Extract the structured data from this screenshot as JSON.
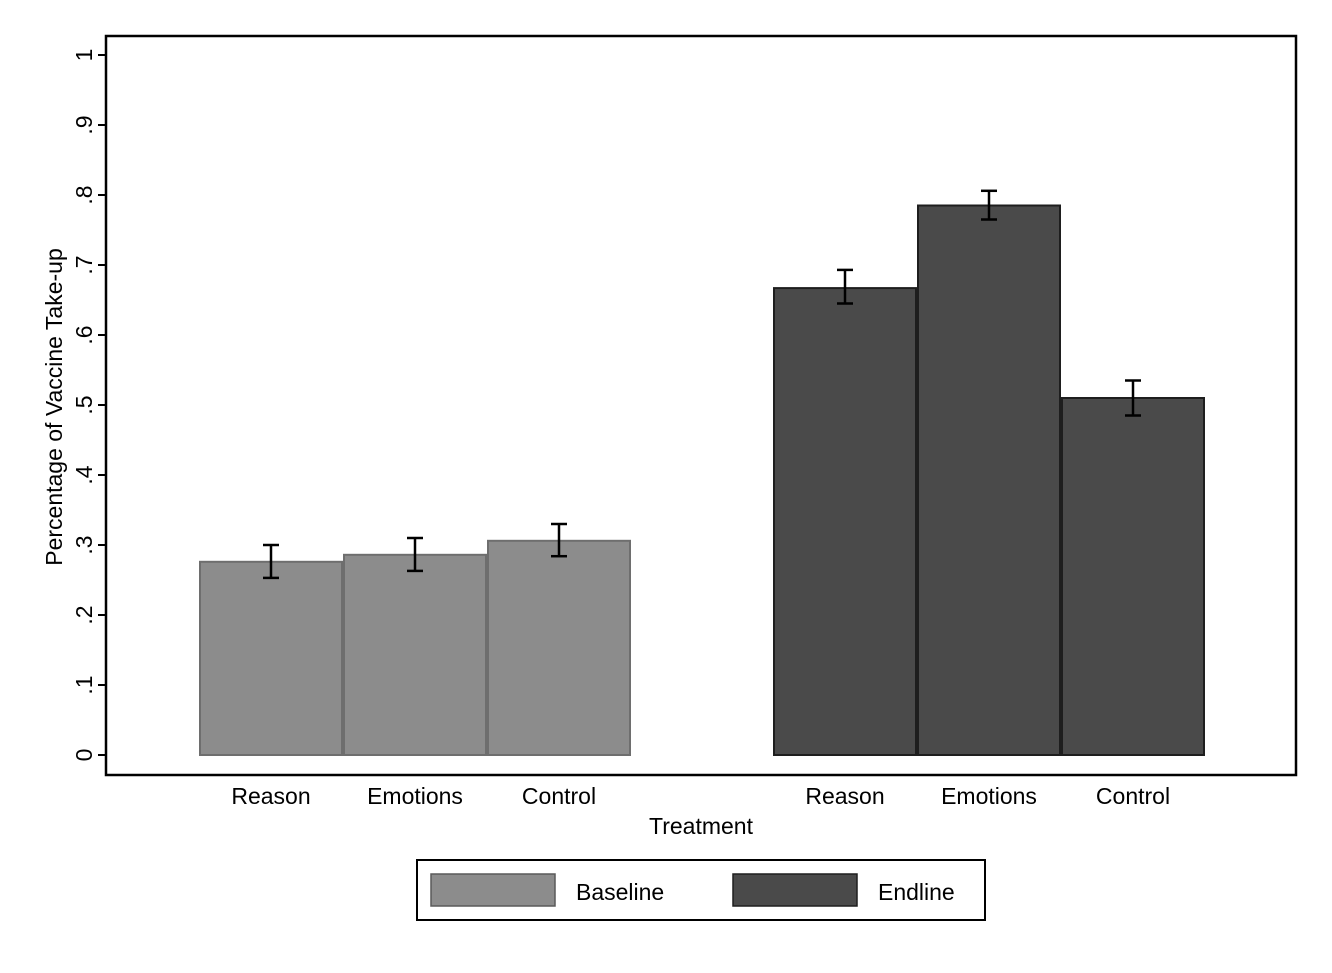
{
  "chart_data": {
    "type": "bar",
    "xlabel": "Treatment",
    "ylabel": "Percentage of Vaccine Take-up",
    "ylim": [
      0,
      1
    ],
    "yticks": [
      "0",
      ".1",
      ".2",
      ".3",
      ".4",
      ".5",
      ".6",
      ".7",
      ".8",
      ".9",
      "1"
    ],
    "grid": false,
    "legend_position": "bottom",
    "groups": [
      {
        "name": "Baseline",
        "color": "#8c8c8c",
        "categories": [
          "Reason",
          "Emotions",
          "Control"
        ],
        "values": [
          0.276,
          0.286,
          0.306
        ],
        "ci_low": [
          0.253,
          0.263,
          0.284
        ],
        "ci_high": [
          0.3,
          0.31,
          0.33
        ]
      },
      {
        "name": "Endline",
        "color": "#4a4a4a",
        "categories": [
          "Reason",
          "Emotions",
          "Control"
        ],
        "values": [
          0.667,
          0.785,
          0.51
        ],
        "ci_low": [
          0.645,
          0.765,
          0.485
        ],
        "ci_high": [
          0.693,
          0.806,
          0.535
        ]
      }
    ]
  }
}
